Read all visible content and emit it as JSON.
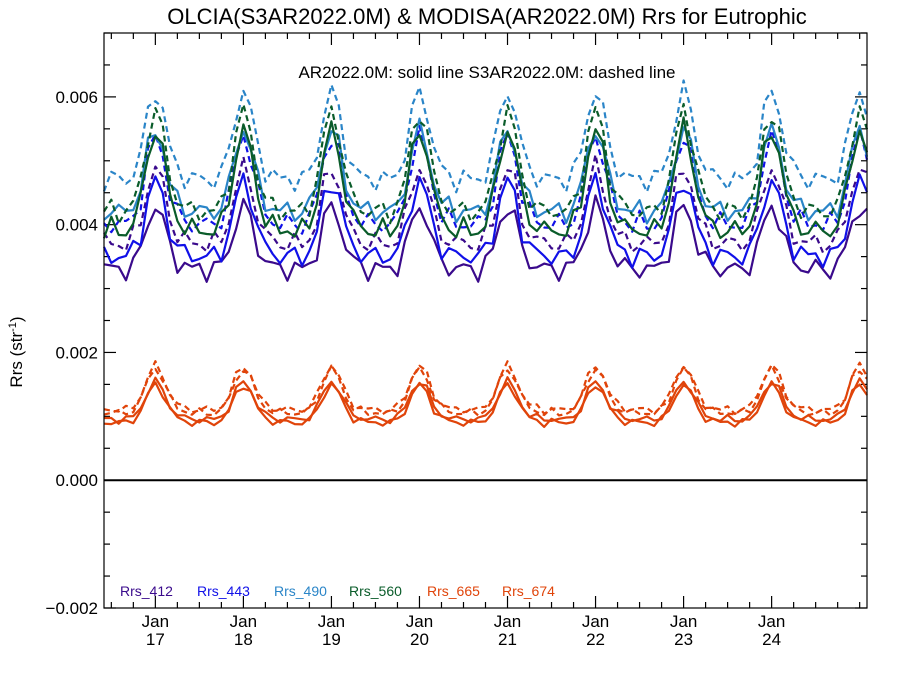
{
  "chart_data": {
    "type": "line",
    "title": "OLCIA(S3AR2022.0M) & MODISA(AR2022.0M)  Rrs for Eutrophic",
    "subtitle": "AR2022.0M: solid line   S3AR2022.0M: dashed line",
    "ylabel": "Rrs (str",
    "ylabel_sup": "-1",
    "ylabel_end": ")",
    "ylim": [
      -0.002,
      0.007
    ],
    "yticks": [
      {
        "value": -0.002,
        "label": "−0.002"
      },
      {
        "value": 0.0,
        "label": "0.000"
      },
      {
        "value": 0.002,
        "label": "0.002"
      },
      {
        "value": 0.004,
        "label": "0.004"
      },
      {
        "value": 0.006,
        "label": "0.006"
      }
    ],
    "xlim": [
      0,
      104
    ],
    "xticks": [
      {
        "value": 7,
        "month": "Jan",
        "year": "17"
      },
      {
        "value": 19,
        "month": "Jan",
        "year": "18"
      },
      {
        "value": 31,
        "month": "Jan",
        "year": "19"
      },
      {
        "value": 43,
        "month": "Jan",
        "year": "20"
      },
      {
        "value": 55,
        "month": "Jan",
        "year": "21"
      },
      {
        "value": 67,
        "month": "Jan",
        "year": "22"
      },
      {
        "value": 79,
        "month": "Jan",
        "year": "23"
      },
      {
        "value": 91,
        "month": "Jan",
        "year": "24"
      }
    ],
    "zero_line": 0.0,
    "legend_position": "bottom-left",
    "seasonal": {
      "period": 12,
      "phase": [
        0.0,
        0.08,
        0.3,
        0.75,
        1.0,
        0.78,
        0.35,
        0.12,
        0.05,
        0.0,
        0.02,
        0.0
      ]
    },
    "series": [
      {
        "name": "Rrs_412",
        "color": "#3a0a8c",
        "style": "solid",
        "base": 0.0033,
        "amp": 0.001
      },
      {
        "name": "Rrs_412",
        "color": "#3a0a8c",
        "style": "dashed",
        "base": 0.0037,
        "amp": 0.0012
      },
      {
        "name": "Rrs_443",
        "color": "#1010e8",
        "style": "solid",
        "base": 0.0035,
        "amp": 0.0012
      },
      {
        "name": "Rrs_443",
        "color": "#1010e8",
        "style": "dashed",
        "base": 0.004,
        "amp": 0.0014
      },
      {
        "name": "Rrs_490",
        "color": "#2a85c8",
        "style": "solid",
        "base": 0.0042,
        "amp": 0.0013
      },
      {
        "name": "Rrs_490",
        "color": "#2a85c8",
        "style": "dashed",
        "base": 0.0047,
        "amp": 0.0014
      },
      {
        "name": "Rrs_560",
        "color": "#0a5c2a",
        "style": "solid",
        "base": 0.0039,
        "amp": 0.0016
      },
      {
        "name": "Rrs_560",
        "color": "#0a5c2a",
        "style": "dashed",
        "base": 0.0042,
        "amp": 0.0016
      },
      {
        "name": "Rrs_665",
        "color": "#e0440a",
        "style": "solid",
        "base": 0.00095,
        "amp": 0.0006
      },
      {
        "name": "Rrs_665",
        "color": "#e0440a",
        "style": "dashed",
        "base": 0.0011,
        "amp": 0.0007
      },
      {
        "name": "Rrs_674",
        "color": "#e0440a",
        "style": "solid",
        "base": 0.0009,
        "amp": 0.0006
      },
      {
        "name": "Rrs_674",
        "color": "#e0440a",
        "style": "dashed",
        "base": 0.00105,
        "amp": 0.0007
      }
    ],
    "legend": [
      {
        "label": "Rrs_412",
        "color": "#3a0a8c"
      },
      {
        "label": "Rrs_443",
        "color": "#1010e8"
      },
      {
        "label": "Rrs_490",
        "color": "#2a85c8"
      },
      {
        "label": "Rrs_560",
        "color": "#0a5c2a"
      },
      {
        "label": "Rrs_665",
        "color": "#e0440a"
      },
      {
        "label": "Rrs_674",
        "color": "#e0440a"
      }
    ]
  }
}
